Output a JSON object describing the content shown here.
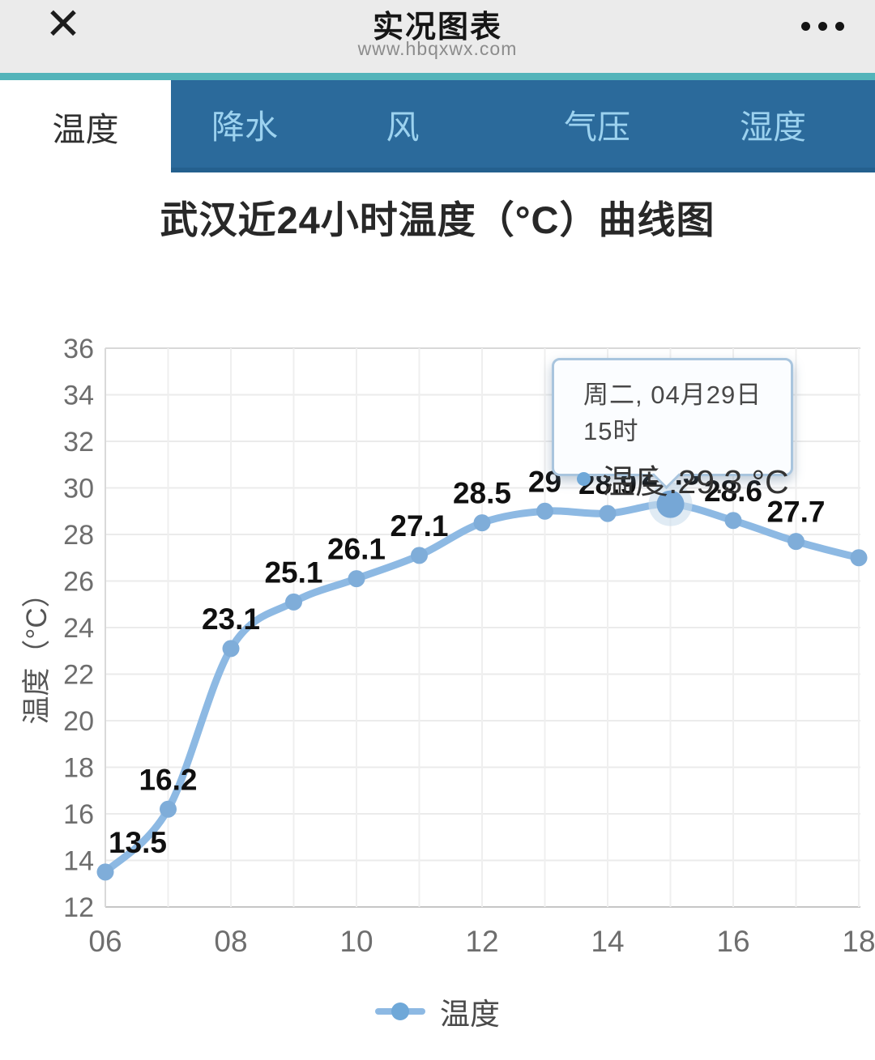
{
  "header": {
    "title": "实况图表",
    "url": "www.hbqxwx.com",
    "close_glyph": "✕",
    "more_icon": "ellipsis-three-dots"
  },
  "tabs": [
    {
      "label": "温度",
      "active": true
    },
    {
      "label": "降水",
      "active": false
    },
    {
      "label": "风",
      "active": false
    },
    {
      "label": "气压",
      "active": false
    },
    {
      "label": "湿度",
      "active": false
    }
  ],
  "page": {
    "chart_title": "武汉近24小时温度（°C）曲线图"
  },
  "tooltip": {
    "title": "周二, 04月29日15时",
    "value_text": "温度:29.3 °C"
  },
  "legend": {
    "label": "温度"
  },
  "chart_data": {
    "type": "line",
    "title": "武汉近24小时温度（°C）曲线图",
    "xlabel": "",
    "ylabel": "温度（°C）",
    "x_hours": [
      6,
      7,
      8,
      9,
      10,
      11,
      12,
      13,
      14,
      15,
      16,
      17,
      18
    ],
    "x_tick_labels": [
      "06",
      "08",
      "10",
      "12",
      "14",
      "16",
      "18"
    ],
    "series": [
      {
        "name": "温度",
        "values": [
          13.5,
          16.2,
          23.1,
          25.1,
          26.1,
          27.1,
          28.5,
          29,
          28.9,
          29.3,
          28.6,
          27.7,
          27
        ]
      }
    ],
    "point_labels": [
      "13.5",
      "16.2",
      "23.1",
      "25.1",
      "26.1",
      "27.1",
      "28.5",
      "29",
      "28.9",
      "29.3",
      "28.6",
      "27.7",
      ""
    ],
    "highlight": {
      "x_hour": 15,
      "value": 29.3,
      "tooltip_title": "周二, 04月29日15时",
      "tooltip_text": "温度:29.3 °C"
    },
    "ylim": [
      12,
      36
    ],
    "y_ticks": [
      12,
      14,
      16,
      18,
      20,
      22,
      24,
      26,
      28,
      30,
      32,
      34,
      36
    ],
    "grid": true,
    "legend_position": "bottom",
    "colors": {
      "line": "#8db9e3",
      "marker": "#7fadd9",
      "halo": "#ccdded",
      "data_label": "#101010",
      "tick_label": "#6e6e6e",
      "grid": "#ebebeb",
      "axis": "#c9c9c9",
      "accent_teal": "#53b4ba",
      "tab_bg": "#2b6a9b",
      "tab_text": "#9cd2ef"
    }
  }
}
